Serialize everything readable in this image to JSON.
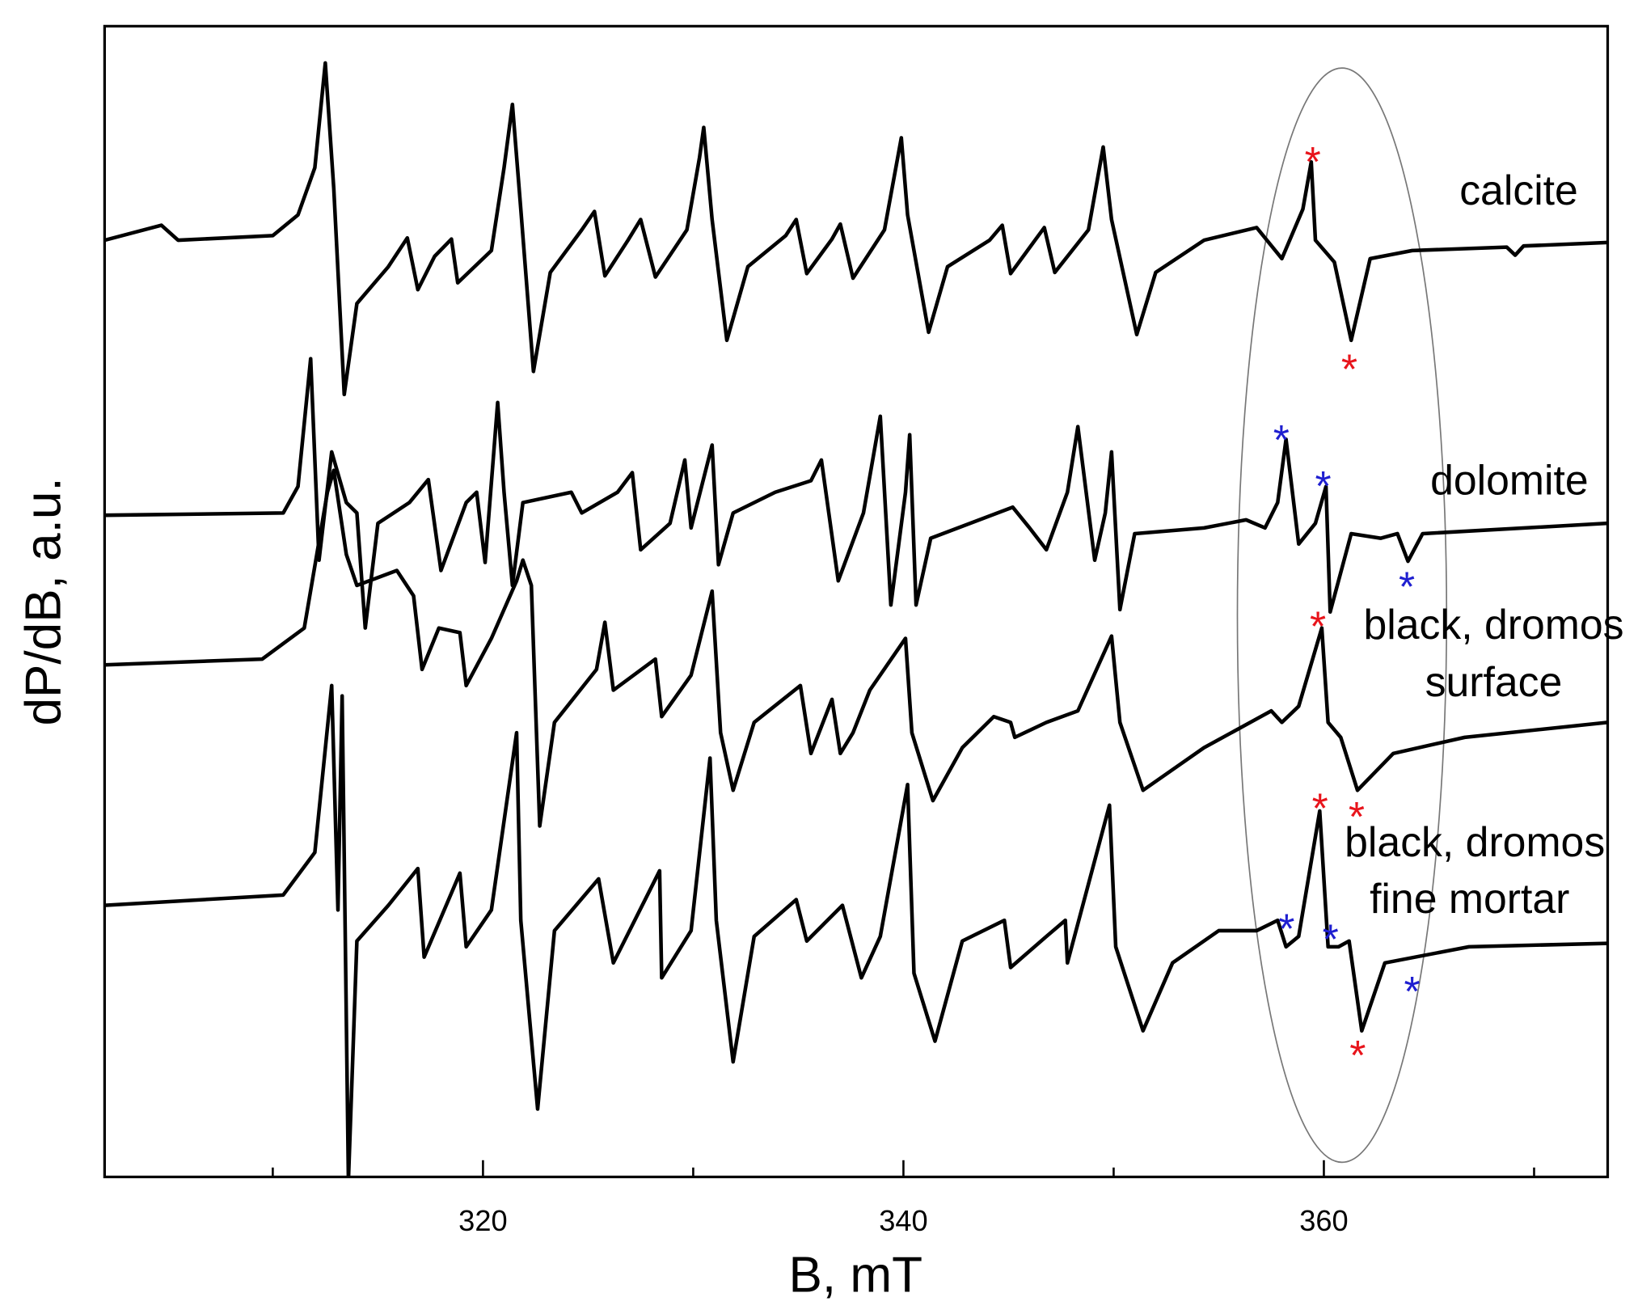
{
  "chart_data": {
    "type": "line",
    "x_label": "B, mT",
    "y_label": "dP/dB, a.u.",
    "xlim": [
      302,
      373.5
    ],
    "ylim": [
      0,
      100
    ],
    "xticks": [
      320,
      340,
      360
    ],
    "xminorticks": [
      310,
      330,
      350,
      370
    ],
    "series": [
      {
        "label": [
          "calcite"
        ],
        "color": "#000000",
        "x": [
          302.0,
          304.7,
          305.5,
          310.0,
          311.2,
          312.0,
          312.5,
          312.9,
          313.4,
          314.0,
          315.5,
          316.4,
          316.9,
          317.7,
          318.5,
          318.8,
          320.4,
          321.0,
          321.4,
          321.8,
          322.4,
          323.2,
          324.7,
          325.3,
          325.8,
          326.9,
          327.5,
          328.2,
          329.7,
          330.3,
          330.5,
          330.9,
          331.6,
          332.6,
          334.4,
          334.9,
          335.4,
          336.6,
          337.0,
          337.6,
          339.1,
          339.9,
          340.2,
          341.2,
          342.1,
          344.1,
          344.7,
          345.1,
          346.3,
          346.7,
          347.2,
          348.8,
          349.5,
          349.9,
          351.1,
          352.0,
          354.3,
          356.8,
          358.0,
          359.0,
          359.4,
          359.6,
          360.5,
          361.3,
          362.2,
          364.2,
          368.7,
          369.1,
          369.5,
          373.5
        ],
        "values": [
          81.4,
          82.7,
          81.4,
          81.8,
          83.6,
          87.7,
          96.8,
          85.9,
          68.0,
          75.9,
          79.1,
          81.6,
          77.1,
          80.0,
          81.5,
          77.7,
          80.5,
          87.7,
          93.2,
          84.1,
          70.0,
          78.6,
          82.3,
          83.9,
          78.3,
          81.4,
          83.2,
          78.2,
          82.3,
          88.6,
          91.2,
          83.2,
          72.7,
          79.1,
          81.8,
          83.2,
          78.5,
          81.5,
          82.8,
          78.1,
          82.3,
          90.3,
          83.6,
          73.4,
          79.1,
          81.4,
          82.7,
          78.5,
          81.5,
          82.5,
          78.6,
          82.3,
          89.5,
          83.2,
          73.2,
          78.6,
          81.4,
          82.5,
          79.8,
          84.1,
          88.2,
          81.4,
          79.5,
          72.7,
          79.8,
          80.5,
          80.8,
          80.1,
          80.9,
          81.2
        ]
      },
      {
        "label": [
          "dolomite"
        ],
        "color": "#000000",
        "x": [
          302.0,
          310.5,
          311.2,
          311.8,
          312.2,
          312.8,
          313.5,
          314.0,
          314.4,
          315.0,
          316.5,
          317.4,
          318.0,
          319.2,
          319.7,
          320.1,
          320.7,
          321.0,
          321.4,
          321.9,
          324.2,
          324.7,
          326.4,
          327.1,
          327.5,
          328.9,
          329.6,
          329.9,
          330.9,
          331.2,
          331.9,
          333.9,
          335.6,
          336.1,
          336.9,
          338.1,
          338.9,
          339.4,
          340.1,
          340.3,
          340.6,
          341.3,
          345.2,
          346.0,
          346.8,
          347.8,
          348.3,
          349.1,
          349.6,
          349.9,
          350.3,
          351.0,
          354.3,
          356.3,
          357.2,
          357.8,
          358.2,
          358.8,
          359.6,
          360.1,
          360.3,
          361.3,
          362.7,
          363.5,
          364.0,
          364.7,
          373.5
        ],
        "values": [
          57.5,
          57.7,
          60.0,
          71.1,
          53.6,
          63.0,
          58.6,
          57.7,
          47.7,
          56.8,
          58.6,
          60.6,
          52.7,
          58.6,
          59.5,
          53.4,
          67.3,
          59.5,
          51.4,
          58.6,
          59.5,
          57.7,
          59.5,
          61.2,
          54.5,
          56.8,
          62.3,
          56.4,
          63.6,
          53.2,
          57.7,
          59.5,
          60.5,
          62.3,
          51.8,
          57.7,
          66.1,
          49.7,
          59.5,
          64.5,
          49.7,
          55.5,
          58.2,
          56.4,
          54.5,
          59.5,
          65.2,
          53.6,
          57.7,
          63.0,
          49.3,
          55.9,
          56.4,
          57.1,
          56.4,
          58.6,
          64.1,
          55.0,
          56.8,
          60.0,
          49.1,
          55.9,
          55.5,
          55.9,
          53.5,
          55.9,
          56.8
        ]
      },
      {
        "label": [
          "black, dromos",
          "surface"
        ],
        "color": "#000000",
        "x": [
          302.0,
          309.5,
          311.5,
          312.6,
          312.9,
          313.5,
          314.0,
          315.9,
          316.7,
          317.1,
          317.9,
          318.9,
          319.2,
          320.4,
          321.6,
          321.9,
          322.3,
          322.7,
          323.4,
          325.4,
          325.8,
          326.2,
          328.2,
          328.5,
          329.9,
          330.9,
          331.3,
          331.9,
          332.9,
          335.1,
          335.6,
          336.6,
          337.0,
          337.6,
          338.4,
          340.1,
          340.4,
          341.4,
          342.8,
          344.3,
          345.1,
          345.3,
          346.8,
          348.3,
          349.9,
          350.3,
          351.4,
          354.3,
          357.5,
          358.0,
          358.8,
          359.9,
          360.2,
          360.8,
          361.6,
          363.3,
          366.7,
          373.5
        ],
        "values": [
          44.5,
          45.0,
          47.7,
          59.5,
          61.4,
          54.1,
          51.4,
          52.7,
          50.5,
          44.1,
          47.7,
          47.3,
          42.7,
          46.8,
          51.8,
          53.6,
          51.4,
          30.5,
          39.5,
          44.1,
          48.2,
          42.3,
          45.0,
          40.0,
          43.6,
          50.9,
          38.6,
          33.6,
          39.5,
          42.7,
          36.8,
          41.5,
          36.8,
          38.6,
          42.3,
          46.8,
          38.6,
          32.7,
          37.3,
          40.0,
          39.5,
          38.2,
          39.5,
          40.5,
          47.0,
          39.5,
          33.6,
          37.3,
          40.5,
          39.5,
          40.9,
          47.7,
          39.5,
          38.2,
          33.6,
          36.8,
          38.2,
          39.5
        ]
      },
      {
        "label": [
          "black, dromos",
          "fine mortar"
        ],
        "color": "#000000",
        "x": [
          302.0,
          310.5,
          312.0,
          312.8,
          313.1,
          313.3,
          313.6,
          314.0,
          315.5,
          316.9,
          317.2,
          318.9,
          319.2,
          320.4,
          321.6,
          321.8,
          322.6,
          323.4,
          325.5,
          326.2,
          328.4,
          328.5,
          329.9,
          330.8,
          331.1,
          331.9,
          332.9,
          334.9,
          335.4,
          337.1,
          338.0,
          338.9,
          340.2,
          340.5,
          341.5,
          342.8,
          344.8,
          345.1,
          346.8,
          347.7,
          347.8,
          349.8,
          350.1,
          351.4,
          352.8,
          355.0,
          356.8,
          357.8,
          358.2,
          358.8,
          359.8,
          360.2,
          360.7,
          361.2,
          361.8,
          362.9,
          366.9,
          373.5
        ],
        "values": [
          23.6,
          24.5,
          28.2,
          42.7,
          23.2,
          41.8,
          -0.3,
          20.5,
          23.6,
          26.8,
          19.1,
          26.4,
          20.0,
          23.2,
          38.6,
          22.3,
          5.9,
          21.4,
          25.9,
          18.6,
          26.6,
          17.3,
          21.4,
          36.4,
          22.3,
          10.0,
          20.9,
          24.1,
          20.5,
          23.6,
          17.3,
          20.9,
          34.1,
          17.7,
          11.8,
          20.5,
          22.3,
          18.2,
          20.9,
          22.3,
          18.6,
          32.3,
          20.0,
          12.7,
          18.6,
          21.4,
          21.4,
          22.3,
          20.0,
          20.9,
          31.8,
          20.0,
          20.0,
          20.5,
          12.7,
          18.6,
          20.0,
          20.3
        ]
      }
    ],
    "annotations": [
      {
        "text": "*",
        "color": "#e8141b"
      },
      {
        "text": "*",
        "color": "#e8141b"
      },
      {
        "text": "*",
        "color": "#1f1fd0"
      },
      {
        "text": "*",
        "color": "#1f1fd0"
      },
      {
        "text": "*",
        "color": "#1f1fd0"
      },
      {
        "text": "*",
        "color": "#e8141b"
      },
      {
        "text": "*",
        "color": "#e8141b"
      },
      {
        "text": "*",
        "color": "#e8141b"
      },
      {
        "text": "*",
        "color": "#e8141b"
      },
      {
        "text": "*",
        "color": "#1f1fd0"
      },
      {
        "text": "*",
        "color": "#1f1fd0"
      },
      {
        "text": "*",
        "color": "#1f1fd0"
      }
    ]
  }
}
